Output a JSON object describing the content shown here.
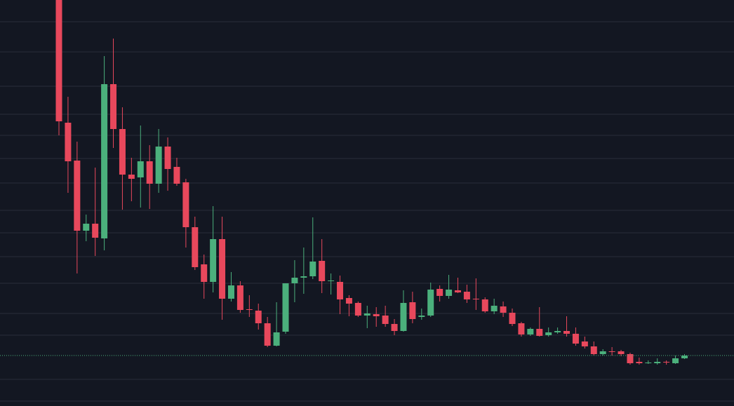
{
  "chart_data": {
    "type": "candlestick",
    "open": [
      579,
      404,
      350,
      250,
      260,
      239,
      459,
      395,
      330,
      326,
      349,
      317,
      370,
      341,
      319,
      255,
      202,
      177,
      238,
      153,
      172,
      138,
      136,
      118,
      86,
      106,
      175,
      183,
      185,
      207,
      178,
      177,
      154,
      147,
      129,
      131,
      129,
      117,
      107,
      148,
      127,
      129,
      167,
      157,
      165,
      163,
      153,
      152,
      135,
      142,
      133,
      118,
      102,
      110,
      101,
      105,
      107,
      103,
      92,
      85,
      74,
      78,
      78,
      74,
      63,
      61,
      61,
      63,
      61,
      68
    ],
    "high": [
      579,
      441,
      377,
      273,
      340,
      499,
      524,
      426,
      354,
      400,
      372,
      395,
      383,
      354,
      324,
      270,
      216,
      285,
      270,
      191,
      178,
      158,
      146,
      127,
      148,
      175,
      208,
      226,
      269,
      238,
      189,
      186,
      158,
      149,
      143,
      141,
      143,
      124,
      165,
      163,
      139,
      176,
      172,
      187,
      183,
      173,
      182,
      155,
      153,
      149,
      139,
      120,
      112,
      141,
      112,
      112,
      128,
      112,
      99,
      92,
      81,
      84,
      80,
      76,
      69,
      65,
      68,
      65,
      72,
      74
    ],
    "low": [
      386,
      304,
      189,
      235,
      214,
      222,
      368,
      280,
      292,
      283,
      281,
      304,
      307,
      314,
      226,
      194,
      153,
      162,
      123,
      149,
      133,
      127,
      109,
      84,
      85,
      103,
      148,
      160,
      181,
      161,
      159,
      131,
      128,
      127,
      111,
      113,
      113,
      101,
      106,
      118,
      123,
      127,
      149,
      153,
      161,
      147,
      137,
      133,
      131,
      127,
      114,
      99,
      100,
      99,
      99,
      103,
      99,
      86,
      82,
      72,
      72,
      72,
      71,
      59,
      59,
      60,
      59,
      59,
      60,
      67
    ],
    "close": [
      406,
      349,
      250,
      260,
      240,
      459,
      395,
      330,
      324,
      349,
      317,
      370,
      338,
      317,
      255,
      198,
      177,
      238,
      153,
      172,
      137,
      137,
      118,
      86,
      105,
      175,
      183,
      185,
      206,
      178,
      179,
      152,
      146,
      129,
      132,
      128,
      117,
      107,
      147,
      124,
      129,
      166,
      157,
      166,
      162,
      152,
      152,
      135,
      143,
      133,
      117,
      102,
      110,
      100,
      105,
      107,
      103,
      89,
      85,
      74,
      78,
      77,
      74,
      61,
      61,
      62,
      63,
      62,
      68,
      72
    ],
    "ylim": [
      0,
      579
    ],
    "yticks": [
      7,
      38,
      101,
      132,
      175,
      213,
      247,
      279,
      318,
      353,
      386,
      416,
      456,
      505,
      548
    ],
    "grid": true,
    "up_color": "#4bb07c",
    "down_color": "#e8485c",
    "grid_color": "#2a2e39",
    "background": "#131722",
    "last_price": 72,
    "last_price_color": "#4bb07c"
  }
}
